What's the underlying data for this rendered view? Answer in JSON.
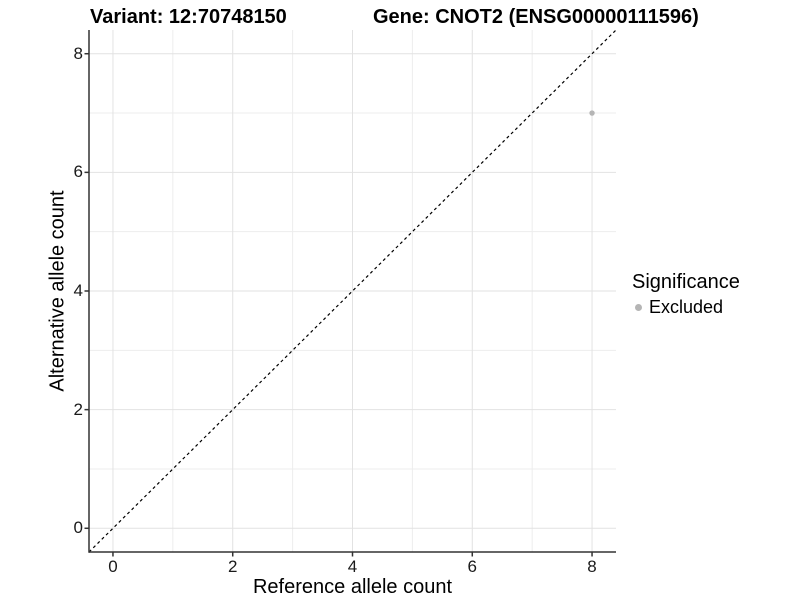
{
  "chart_data": {
    "type": "scatter",
    "title_left": "Variant: 12:70748150",
    "title_right": "Gene: CNOT2 (ENSG00000111596)",
    "xlabel": "Reference allele count",
    "ylabel": "Alternative allele count",
    "xlim": [
      -0.4,
      8.4
    ],
    "ylim": [
      -0.4,
      8.4
    ],
    "xticks": [
      0,
      2,
      4,
      6,
      8
    ],
    "yticks": [
      0,
      2,
      4,
      6,
      8
    ],
    "minor_gridlines": [
      1,
      3,
      5,
      7
    ],
    "grid": "major and minor, light gray on white",
    "identity_line": {
      "slope": 1,
      "intercept": 0,
      "style": "dashed",
      "color": "#000000"
    },
    "points": [
      {
        "x": 8,
        "y": 7,
        "significance": "Excluded"
      }
    ],
    "legend": {
      "title": "Significance",
      "position": "right",
      "entries": [
        {
          "label": "Excluded",
          "color": "#b5b5b5"
        }
      ]
    },
    "colors": {
      "point": "#b5b5b5",
      "grid_major": "#e2e2e2",
      "grid_minor": "#ededed",
      "axis_line": "#333333",
      "dashed_line": "#000000",
      "background": "#ffffff"
    }
  }
}
